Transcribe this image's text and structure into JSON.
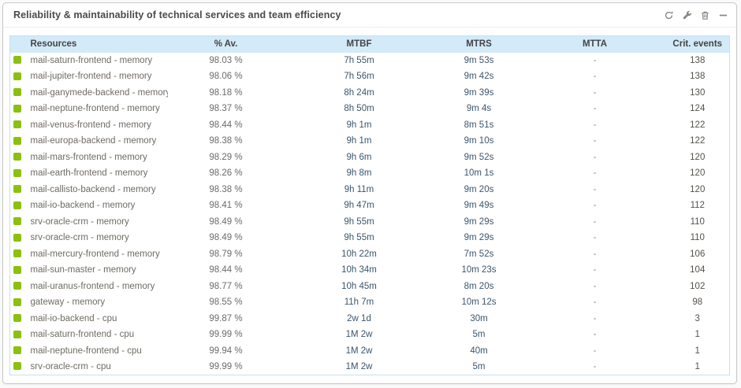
{
  "panel": {
    "title": "Reliability & maintainability of technical services and team efficiency",
    "toolbar": {
      "icons": [
        "refresh-icon",
        "wrench-icon",
        "delete-icon",
        "minimize-icon"
      ]
    }
  },
  "table": {
    "columns": [
      "Resources",
      "% Av.",
      "MTBF",
      "MTRS",
      "MTTA",
      "Crit. events"
    ],
    "rows": [
      {
        "resource": "mail-saturn-frontend - memory",
        "availability": "98.03 %",
        "mtbf": "7h 55m",
        "mtrs": "9m 53s",
        "mtta": "-",
        "crit_events": "138"
      },
      {
        "resource": "mail-jupiter-frontend - memory",
        "availability": "98.06 %",
        "mtbf": "7h 56m",
        "mtrs": "9m 42s",
        "mtta": "-",
        "crit_events": "138"
      },
      {
        "resource": "mail-ganymede-backend - memory",
        "availability": "98.18 %",
        "mtbf": "8h 24m",
        "mtrs": "9m 39s",
        "mtta": "-",
        "crit_events": "130"
      },
      {
        "resource": "mail-neptune-frontend - memory",
        "availability": "98.37 %",
        "mtbf": "8h 50m",
        "mtrs": "9m 4s",
        "mtta": "-",
        "crit_events": "124"
      },
      {
        "resource": "mail-venus-frontend - memory",
        "availability": "98.44 %",
        "mtbf": "9h 1m",
        "mtrs": "8m 51s",
        "mtta": "-",
        "crit_events": "122"
      },
      {
        "resource": "mail-europa-backend - memory",
        "availability": "98.38 %",
        "mtbf": "9h 1m",
        "mtrs": "9m 10s",
        "mtta": "-",
        "crit_events": "122"
      },
      {
        "resource": "mail-mars-frontend - memory",
        "availability": "98.29 %",
        "mtbf": "9h 6m",
        "mtrs": "9m 52s",
        "mtta": "-",
        "crit_events": "120"
      },
      {
        "resource": "mail-earth-frontend - memory",
        "availability": "98.26 %",
        "mtbf": "9h 8m",
        "mtrs": "10m 1s",
        "mtta": "-",
        "crit_events": "120"
      },
      {
        "resource": "mail-callisto-backend - memory",
        "availability": "98.38 %",
        "mtbf": "9h 11m",
        "mtrs": "9m 20s",
        "mtta": "-",
        "crit_events": "120"
      },
      {
        "resource": "mail-io-backend - memory",
        "availability": "98.41 %",
        "mtbf": "9h 47m",
        "mtrs": "9m 49s",
        "mtta": "-",
        "crit_events": "112"
      },
      {
        "resource": "srv-oracle-crm - memory",
        "availability": "98.49 %",
        "mtbf": "9h 55m",
        "mtrs": "9m 29s",
        "mtta": "-",
        "crit_events": "110"
      },
      {
        "resource": "srv-oracle-crm - memory",
        "availability": "98.49 %",
        "mtbf": "9h 55m",
        "mtrs": "9m 29s",
        "mtta": "-",
        "crit_events": "110"
      },
      {
        "resource": "mail-mercury-frontend - memory",
        "availability": "98.79 %",
        "mtbf": "10h 22m",
        "mtrs": "7m 52s",
        "mtta": "-",
        "crit_events": "106"
      },
      {
        "resource": "mail-sun-master - memory",
        "availability": "98.44 %",
        "mtbf": "10h 34m",
        "mtrs": "10m 23s",
        "mtta": "-",
        "crit_events": "104"
      },
      {
        "resource": "mail-uranus-frontend - memory",
        "availability": "98.77 %",
        "mtbf": "10h 45m",
        "mtrs": "8m 20s",
        "mtta": "-",
        "crit_events": "102"
      },
      {
        "resource": "gateway - memory",
        "availability": "98.55 %",
        "mtbf": "11h 7m",
        "mtrs": "10m 12s",
        "mtta": "-",
        "crit_events": "98"
      },
      {
        "resource": "mail-io-backend - cpu",
        "availability": "99.87 %",
        "mtbf": "2w 1d",
        "mtrs": "30m",
        "mtta": "-",
        "crit_events": "3"
      },
      {
        "resource": "mail-saturn-frontend - cpu",
        "availability": "99.99 %",
        "mtbf": "1M 2w",
        "mtrs": "5m",
        "mtta": "-",
        "crit_events": "1"
      },
      {
        "resource": "mail-neptune-frontend - cpu",
        "availability": "99.94 %",
        "mtbf": "1M 2w",
        "mtrs": "40m",
        "mtta": "-",
        "crit_events": "1"
      },
      {
        "resource": "srv-oracle-crm - cpu",
        "availability": "99.99 %",
        "mtbf": "1M 2w",
        "mtrs": "5m",
        "mtta": "-",
        "crit_events": "1"
      }
    ]
  },
  "colors": {
    "status_ok": "#8cc010",
    "header_bg": "#d3eaf8",
    "table_border": "#c6e0f0",
    "time_text": "#3a566b"
  }
}
